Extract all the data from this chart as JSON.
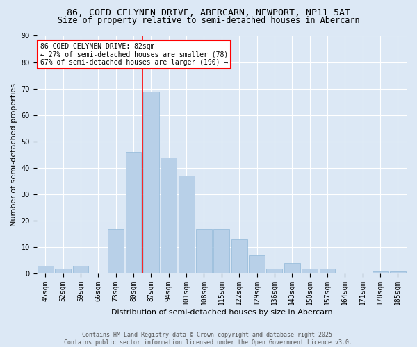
{
  "title_line1": "86, COED CELYNEN DRIVE, ABERCARN, NEWPORT, NP11 5AT",
  "title_line2": "Size of property relative to semi-detached houses in Abercarn",
  "xlabel": "Distribution of semi-detached houses by size in Abercarn",
  "ylabel": "Number of semi-detached properties",
  "footer_line1": "Contains HM Land Registry data © Crown copyright and database right 2025.",
  "footer_line2": "Contains public sector information licensed under the Open Government Licence v3.0.",
  "categories": [
    "45sqm",
    "52sqm",
    "59sqm",
    "66sqm",
    "73sqm",
    "80sqm",
    "87sqm",
    "94sqm",
    "101sqm",
    "108sqm",
    "115sqm",
    "122sqm",
    "129sqm",
    "136sqm",
    "143sqm",
    "150sqm",
    "157sqm",
    "164sqm",
    "171sqm",
    "178sqm",
    "185sqm"
  ],
  "values": [
    3,
    2,
    3,
    0,
    17,
    46,
    69,
    44,
    37,
    17,
    17,
    13,
    7,
    2,
    4,
    2,
    2,
    0,
    0,
    1,
    1
  ],
  "bar_color": "#b8d0e8",
  "bar_edge_color": "#90b8d8",
  "vline_x": 5.5,
  "vline_color": "red",
  "annotation_text": "86 COED CELYNEN DRIVE: 82sqm\n← 27% of semi-detached houses are smaller (78)\n67% of semi-detached houses are larger (190) →",
  "annotation_box_color": "white",
  "annotation_box_edge_color": "red",
  "ylim": [
    0,
    90
  ],
  "yticks": [
    0,
    10,
    20,
    30,
    40,
    50,
    60,
    70,
    80,
    90
  ],
  "background_color": "#dce8f5",
  "grid_color": "white",
  "title_fontsize": 9.5,
  "subtitle_fontsize": 8.5,
  "axis_label_fontsize": 8,
  "tick_fontsize": 7,
  "annotation_fontsize": 7,
  "footer_fontsize": 6
}
